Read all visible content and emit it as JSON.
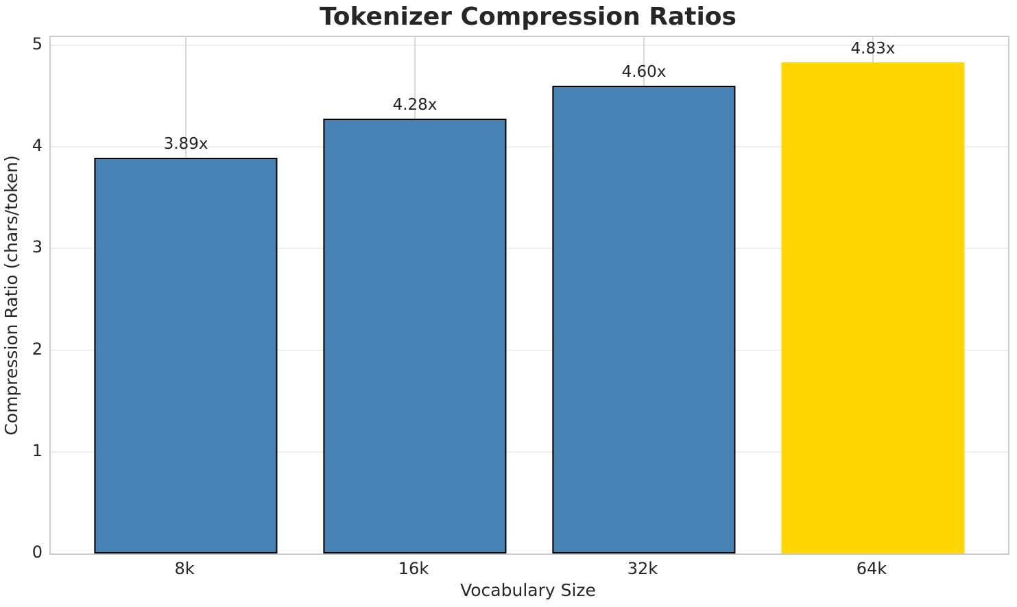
{
  "chart_data": {
    "type": "bar",
    "title": "Tokenizer Compression Ratios",
    "xlabel": "Vocabulary Size",
    "ylabel": "Compression Ratio (chars/token)",
    "categories": [
      "8k",
      "16k",
      "32k",
      "64k"
    ],
    "values": [
      3.89,
      4.28,
      4.6,
      4.83
    ],
    "value_labels": [
      "3.89x",
      "4.28x",
      "4.60x",
      "4.83x"
    ],
    "series": [
      {
        "name": "Compression Ratio",
        "values": [
          3.89,
          4.28,
          4.6,
          4.83
        ]
      }
    ],
    "yticks": [
      0,
      1,
      2,
      3,
      4,
      5
    ],
    "ylim": [
      0,
      5.08
    ],
    "grid": true,
    "legend_position": "none",
    "highlight_category": "64k",
    "bar_colors": [
      "#4682B4",
      "#4682B4",
      "#4682B4",
      "#FFD700"
    ],
    "bar_edge_colors": [
      "#000000",
      "#000000",
      "#000000",
      "none"
    ]
  },
  "colors": {
    "default_bar": "#4682B4",
    "highlight_bar": "#FFD700",
    "bar_edge": "#000000",
    "text": "#262626",
    "spine": "#cccccc",
    "grid_horizontal": "#efefef",
    "grid_vertical": "#d9d9d9",
    "background": "#ffffff"
  }
}
